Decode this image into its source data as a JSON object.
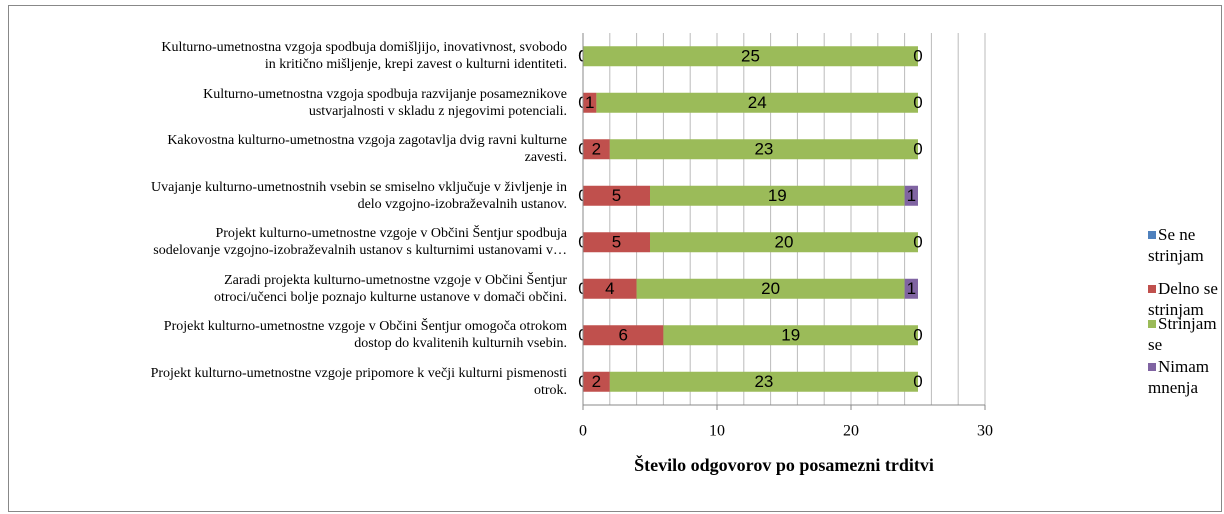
{
  "chart_data": {
    "type": "stacked-barh",
    "categories": [
      "Kulturno-umetnostna vzgoja spodbuja domišljijo, inovativnost, svobodo\nin kritično mišljenje, krepi zavest o kulturni identiteti.",
      "Kulturno-umetnostna vzgoja spodbuja razvijanje posameznikove\nustvarjalnosti v skladu z njegovimi potenciali.",
      "Kakovostna kulturno-umetnostna vzgoja zagotavlja dvig ravni kulturne\nzavesti.",
      "Uvajanje kulturno-umetnostnih vsebin se smiselno vključuje v življenje in\ndelo vzgojno-izobraževalnih ustanov.",
      "Projekt kulturno-umetnostne vzgoje v Občini Šentjur spodbuja\nsodelovanje vzgojno-izobraževalnih ustanov s kulturnimi ustanovami v…",
      "Zaradi projekta kulturno-umetnostne vzgoje v Občini Šentjur\notroci/učenci bolje poznajo kulturne ustanove v domači občini.",
      "Projekt kulturno-umetnostne vzgoje v Občini Šentjur omogoča otrokom\ndostop do kvalitenih kulturnih vsebin.",
      "Projekt kulturno-umetnostne vzgoje pripomore k večji kulturni pismenosti\notrok."
    ],
    "series": [
      {
        "name": "Se ne strinjam",
        "color": "#4f81bd",
        "values": [
          0,
          0,
          0,
          0,
          0,
          0,
          0,
          0
        ]
      },
      {
        "name": "Delno se strinjam",
        "color": "#c0504d",
        "values": [
          0,
          1,
          2,
          5,
          5,
          4,
          6,
          2
        ]
      },
      {
        "name": "Strinjam se",
        "color": "#9bbb59",
        "values": [
          25,
          24,
          23,
          19,
          20,
          20,
          19,
          23
        ]
      },
      {
        "name": "Nimam mnenja",
        "color": "#8064a2",
        "values": [
          0,
          0,
          0,
          1,
          0,
          1,
          0,
          0
        ]
      }
    ],
    "xlabel": "Število odgovorov po posamezni trditvi",
    "xlim": [
      0,
      30
    ],
    "xticks": [
      0,
      10,
      20,
      30
    ],
    "xgrid": [
      2,
      4,
      6,
      8,
      10,
      12,
      14,
      16,
      18,
      20,
      22,
      24,
      26,
      28,
      30
    ],
    "legend": "right"
  }
}
